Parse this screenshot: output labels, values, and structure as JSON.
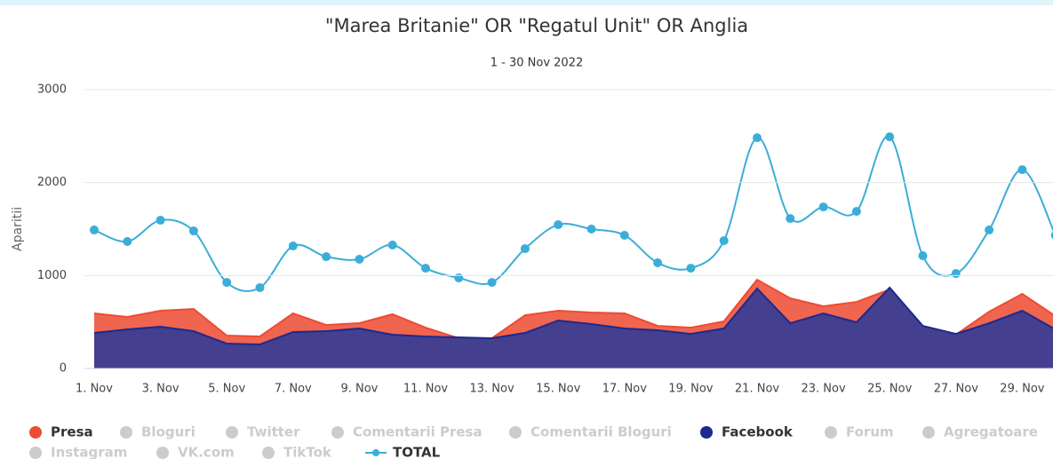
{
  "chart_data": {
    "type": "area",
    "title": "\"Marea Britanie\" OR \"Regatul Unit\" OR Anglia",
    "subtitle": "1 - 30 Nov 2022",
    "y_label": "Aparitii",
    "categories": [
      "1. Nov",
      null,
      "3. Nov",
      null,
      "5. Nov",
      null,
      "7. Nov",
      null,
      "9. Nov",
      null,
      "11. Nov",
      null,
      "13. Nov",
      null,
      "15. Nov",
      null,
      "17. Nov",
      null,
      "19. Nov",
      null,
      "21. Nov",
      null,
      "23. Nov",
      null,
      "25. Nov",
      null,
      "27. Nov",
      null,
      "29. Nov",
      null
    ],
    "ylim": [
      0,
      3000
    ],
    "yticks": [
      0,
      1000,
      2000,
      3000
    ],
    "grid": true,
    "legend": "bottom",
    "series": [
      {
        "name": "Presa",
        "type": "area",
        "visible": true,
        "color": "#ee4b33",
        "values": [
          592,
          554,
          621,
          640,
          353,
          344,
          592,
          468,
          487,
          583,
          439,
          325,
          325,
          573,
          621,
          602,
          592,
          458,
          439,
          506,
          955,
          755,
          669,
          716,
          850,
          430,
          363,
          611,
          802,
          563
        ]
      },
      {
        "name": "Bloguri",
        "type": "area",
        "visible": false,
        "color": "#cccccc"
      },
      {
        "name": "Twitter",
        "type": "area",
        "visible": false,
        "color": "#cccccc"
      },
      {
        "name": "Comentarii Presa",
        "type": "area",
        "visible": false,
        "color": "#cccccc"
      },
      {
        "name": "Comentarii Bloguri",
        "type": "area",
        "visible": false,
        "color": "#cccccc"
      },
      {
        "name": "Facebook",
        "type": "area",
        "visible": true,
        "color": "#1b2a8e",
        "values": [
          382,
          420,
          449,
          401,
          267,
          258,
          392,
          401,
          430,
          363,
          344,
          334,
          325,
          382,
          516,
          478,
          430,
          411,
          372,
          430,
          860,
          487,
          592,
          497,
          869,
          458,
          372,
          487,
          621,
          420
        ]
      },
      {
        "name": "Forum",
        "type": "area",
        "visible": false,
        "color": "#cccccc"
      },
      {
        "name": "Agregatoare",
        "type": "area",
        "visible": false,
        "color": "#cccccc"
      },
      {
        "name": "Instagram",
        "type": "area",
        "visible": false,
        "color": "#cccccc"
      },
      {
        "name": "VK.com",
        "type": "area",
        "visible": false,
        "color": "#cccccc"
      },
      {
        "name": "TikTok",
        "type": "area",
        "visible": false,
        "color": "#cccccc"
      },
      {
        "name": "TOTAL",
        "type": "spline",
        "visible": true,
        "color": "#3aaed8",
        "values": [
          1490,
          1366,
          1595,
          1480,
          926,
          870,
          1318,
          1203,
          1175,
          1328,
          1079,
          974,
          926,
          1289,
          1547,
          1500,
          1433,
          1137,
          1079,
          1375,
          2483,
          1614,
          1738,
          1690,
          2493,
          1213,
          1022,
          1490,
          2139,
          1433
        ]
      }
    ]
  }
}
